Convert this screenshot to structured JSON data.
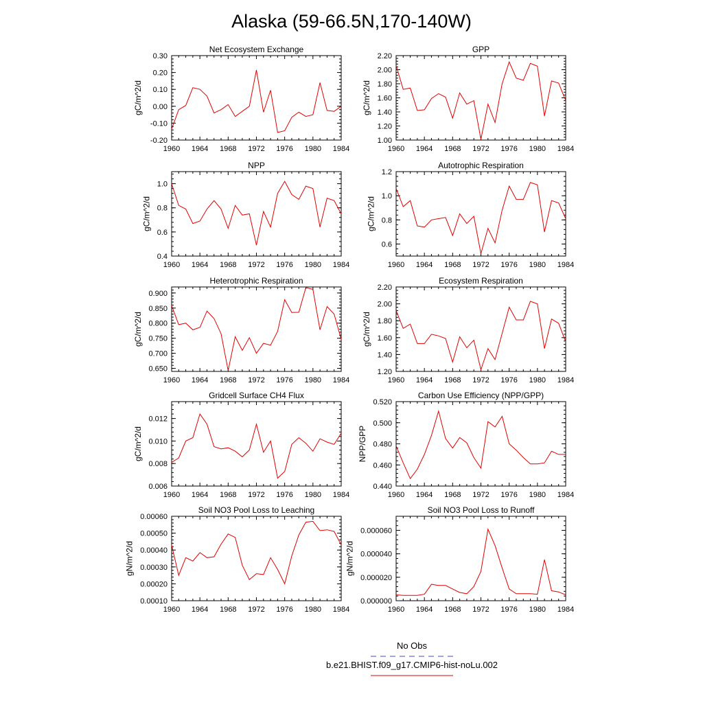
{
  "figure": {
    "title": "Alaska (59-66.5N,170-140W)"
  },
  "legend": {
    "entries": [
      {
        "label": "No Obs",
        "color": "#4444cc",
        "dash": true
      },
      {
        "label": "b.e21.BHIST.f09_g17.CMIP6-hist-noLu.002",
        "color": "#e00000",
        "dash": false
      }
    ]
  },
  "colors": {
    "series": "#e00000"
  },
  "chart_data": [
    {
      "type": "line",
      "title": "Net Ecosystem Exchange",
      "ylabel": "gC/m^2/d",
      "xlim": [
        1960,
        1984
      ],
      "ylim": [
        -0.2,
        0.3
      ],
      "xticks": [
        1960,
        1964,
        1968,
        1972,
        1976,
        1980,
        1984
      ],
      "yticks": [
        "-0.20",
        "-0.10",
        "0.00",
        "0.10",
        "0.20",
        "0.30"
      ],
      "x": [
        1960,
        1961,
        1962,
        1963,
        1964,
        1965,
        1966,
        1967,
        1968,
        1969,
        1970,
        1971,
        1972,
        1973,
        1974,
        1975,
        1976,
        1977,
        1978,
        1979,
        1980,
        1981,
        1982,
        1983,
        1984
      ],
      "series": [
        {
          "name": "b.e21.BHIST.f09_g17.CMIP6-hist-noLu.002",
          "values": [
            -0.135,
            -0.02,
            0.005,
            0.11,
            0.1,
            0.06,
            -0.04,
            -0.02,
            0.01,
            -0.06,
            -0.03,
            0.0,
            0.215,
            -0.035,
            0.095,
            -0.155,
            -0.145,
            -0.065,
            -0.035,
            -0.06,
            -0.05,
            0.14,
            -0.025,
            -0.03,
            0.0
          ]
        }
      ]
    },
    {
      "type": "line",
      "title": "GPP",
      "ylabel": "gC/m^2/d",
      "xlim": [
        1960,
        1984
      ],
      "ylim": [
        1.0,
        2.2
      ],
      "xticks": [
        1960,
        1964,
        1968,
        1972,
        1976,
        1980,
        1984
      ],
      "yticks": [
        "1.00",
        "1.20",
        "1.40",
        "1.60",
        "1.80",
        "2.00",
        "2.20"
      ],
      "x": [
        1960,
        1961,
        1962,
        1963,
        1964,
        1965,
        1966,
        1967,
        1968,
        1969,
        1970,
        1971,
        1972,
        1973,
        1974,
        1975,
        1976,
        1977,
        1978,
        1979,
        1980,
        1981,
        1982,
        1983,
        1984
      ],
      "series": [
        {
          "name": "b.e21.BHIST.f09_g17.CMIP6-hist-noLu.002",
          "values": [
            2.06,
            1.72,
            1.74,
            1.42,
            1.43,
            1.59,
            1.66,
            1.61,
            1.31,
            1.67,
            1.51,
            1.56,
            1.01,
            1.51,
            1.25,
            1.8,
            2.11,
            1.88,
            1.85,
            2.09,
            2.05,
            1.34,
            1.84,
            1.81,
            1.56
          ]
        }
      ]
    },
    {
      "type": "line",
      "title": "NPP",
      "ylabel": "gC/m^2/d",
      "xlim": [
        1960,
        1984
      ],
      "ylim": [
        0.4,
        1.1
      ],
      "xticks": [
        1960,
        1964,
        1968,
        1972,
        1976,
        1980,
        1984
      ],
      "yticks": [
        "0.4",
        "0.6",
        "0.8",
        "1.0"
      ],
      "x": [
        1960,
        1961,
        1962,
        1963,
        1964,
        1965,
        1966,
        1967,
        1968,
        1969,
        1970,
        1971,
        1972,
        1973,
        1974,
        1975,
        1976,
        1977,
        1978,
        1979,
        1980,
        1981,
        1982,
        1983,
        1984
      ],
      "series": [
        {
          "name": "b.e21.BHIST.f09_g17.CMIP6-hist-noLu.002",
          "values": [
            1.0,
            0.82,
            0.79,
            0.67,
            0.69,
            0.79,
            0.86,
            0.79,
            0.63,
            0.82,
            0.74,
            0.75,
            0.49,
            0.77,
            0.64,
            0.92,
            1.02,
            0.91,
            0.87,
            0.98,
            0.96,
            0.64,
            0.88,
            0.86,
            0.75
          ]
        }
      ]
    },
    {
      "type": "line",
      "title": "Autotrophic Respiration",
      "ylabel": "gC/m^2/d",
      "xlim": [
        1960,
        1984
      ],
      "ylim": [
        0.5,
        1.2
      ],
      "xticks": [
        1960,
        1964,
        1968,
        1972,
        1976,
        1980,
        1984
      ],
      "yticks": [
        "0.6",
        "0.8",
        "1.0",
        "1.2"
      ],
      "x": [
        1960,
        1961,
        1962,
        1963,
        1964,
        1965,
        1966,
        1967,
        1968,
        1969,
        1970,
        1971,
        1972,
        1973,
        1974,
        1975,
        1976,
        1977,
        1978,
        1979,
        1980,
        1981,
        1982,
        1983,
        1984
      ],
      "series": [
        {
          "name": "b.e21.BHIST.f09_g17.CMIP6-hist-noLu.002",
          "values": [
            1.06,
            0.91,
            0.96,
            0.75,
            0.74,
            0.8,
            0.81,
            0.82,
            0.67,
            0.85,
            0.77,
            0.83,
            0.52,
            0.73,
            0.61,
            0.88,
            1.08,
            0.97,
            0.97,
            1.11,
            1.09,
            0.7,
            0.96,
            0.94,
            0.81
          ]
        }
      ]
    },
    {
      "type": "line",
      "title": "Heterotrophic Respiration",
      "ylabel": "gC/m^2/d",
      "xlim": [
        1960,
        1984
      ],
      "ylim": [
        0.64,
        0.92
      ],
      "xticks": [
        1960,
        1964,
        1968,
        1972,
        1976,
        1980,
        1984
      ],
      "yticks": [
        "0.650",
        "0.700",
        "0.750",
        "0.800",
        "0.850",
        "0.900"
      ],
      "x": [
        1960,
        1961,
        1962,
        1963,
        1964,
        1965,
        1966,
        1967,
        1968,
        1969,
        1970,
        1971,
        1972,
        1973,
        1974,
        1975,
        1976,
        1977,
        1978,
        1979,
        1980,
        1981,
        1982,
        1983,
        1984
      ],
      "series": [
        {
          "name": "b.e21.BHIST.f09_g17.CMIP6-hist-noLu.002",
          "values": [
            0.858,
            0.795,
            0.8,
            0.778,
            0.786,
            0.84,
            0.815,
            0.765,
            0.643,
            0.755,
            0.71,
            0.752,
            0.7,
            0.733,
            0.727,
            0.773,
            0.878,
            0.835,
            0.836,
            0.918,
            0.912,
            0.778,
            0.855,
            0.83,
            0.746
          ]
        }
      ]
    },
    {
      "type": "line",
      "title": "Ecosystem Respiration",
      "ylabel": "gC/m^2/d",
      "xlim": [
        1960,
        1984
      ],
      "ylim": [
        1.2,
        2.2
      ],
      "xticks": [
        1960,
        1964,
        1968,
        1972,
        1976,
        1980,
        1984
      ],
      "yticks": [
        "1.20",
        "1.40",
        "1.60",
        "1.80",
        "2.00",
        "2.20"
      ],
      "x": [
        1960,
        1961,
        1962,
        1963,
        1964,
        1965,
        1966,
        1967,
        1968,
        1969,
        1970,
        1971,
        1972,
        1973,
        1974,
        1975,
        1976,
        1977,
        1978,
        1979,
        1980,
        1981,
        1982,
        1983,
        1984
      ],
      "series": [
        {
          "name": "b.e21.BHIST.f09_g17.CMIP6-hist-noLu.002",
          "values": [
            1.92,
            1.71,
            1.76,
            1.53,
            1.53,
            1.64,
            1.62,
            1.59,
            1.31,
            1.61,
            1.48,
            1.57,
            1.22,
            1.47,
            1.34,
            1.65,
            1.96,
            1.81,
            1.81,
            2.03,
            2.0,
            1.47,
            1.82,
            1.77,
            1.55
          ]
        }
      ]
    },
    {
      "type": "line",
      "title": "Gridcell Surface CH4 Flux",
      "ylabel": "gC/m^2/d",
      "xlim": [
        1960,
        1984
      ],
      "ylim": [
        0.006,
        0.0135
      ],
      "xticks": [
        1960,
        1964,
        1968,
        1972,
        1976,
        1980,
        1984
      ],
      "yticks": [
        "0.006",
        "0.008",
        "0.010",
        "0.012"
      ],
      "x": [
        1960,
        1961,
        1962,
        1963,
        1964,
        1965,
        1966,
        1967,
        1968,
        1969,
        1970,
        1971,
        1972,
        1973,
        1974,
        1975,
        1976,
        1977,
        1978,
        1979,
        1980,
        1981,
        1982,
        1983,
        1984
      ],
      "series": [
        {
          "name": "b.e21.BHIST.f09_g17.CMIP6-hist-noLu.002",
          "values": [
            0.0081,
            0.0085,
            0.01,
            0.0103,
            0.0124,
            0.0115,
            0.0095,
            0.0093,
            0.0094,
            0.0091,
            0.0086,
            0.0092,
            0.0115,
            0.009,
            0.01,
            0.0067,
            0.0073,
            0.0097,
            0.0103,
            0.0098,
            0.0091,
            0.0102,
            0.0099,
            0.0097,
            0.0107
          ]
        }
      ]
    },
    {
      "type": "line",
      "title": "Carbon Use Efficiency (NPP/GPP)",
      "ylabel": "NPP/GPP",
      "xlim": [
        1960,
        1984
      ],
      "ylim": [
        0.44,
        0.52
      ],
      "xticks": [
        1960,
        1964,
        1968,
        1972,
        1976,
        1980,
        1984
      ],
      "yticks": [
        "0.440",
        "0.460",
        "0.480",
        "0.500",
        "0.520"
      ],
      "x": [
        1960,
        1961,
        1962,
        1963,
        1964,
        1965,
        1966,
        1967,
        1968,
        1969,
        1970,
        1971,
        1972,
        1973,
        1974,
        1975,
        1976,
        1977,
        1978,
        1979,
        1980,
        1981,
        1982,
        1983,
        1984
      ],
      "series": [
        {
          "name": "b.e21.BHIST.f09_g17.CMIP6-hist-noLu.002",
          "values": [
            0.478,
            0.462,
            0.447,
            0.456,
            0.47,
            0.488,
            0.511,
            0.485,
            0.476,
            0.486,
            0.481,
            0.467,
            0.457,
            0.501,
            0.496,
            0.506,
            0.48,
            0.474,
            0.467,
            0.461,
            0.461,
            0.462,
            0.473,
            0.47,
            0.47
          ]
        }
      ]
    },
    {
      "type": "line",
      "title": "Soil NO3 Pool Loss to Leaching",
      "ylabel": "gN/m^2/d",
      "xlim": [
        1960,
        1984
      ],
      "ylim": [
        0.0001,
        0.0006
      ],
      "xticks": [
        1960,
        1964,
        1968,
        1972,
        1976,
        1980,
        1984
      ],
      "yticks": [
        "0.00010",
        "0.00020",
        "0.00030",
        "0.00040",
        "0.00050",
        "0.00060"
      ],
      "x": [
        1960,
        1961,
        1962,
        1963,
        1964,
        1965,
        1966,
        1967,
        1968,
        1969,
        1970,
        1971,
        1972,
        1973,
        1974,
        1975,
        1976,
        1977,
        1978,
        1979,
        1980,
        1981,
        1982,
        1983,
        1984
      ],
      "series": [
        {
          "name": "b.e21.BHIST.f09_g17.CMIP6-hist-noLu.002",
          "values": [
            0.00043,
            0.00025,
            0.000355,
            0.000335,
            0.000385,
            0.000355,
            0.00036,
            0.000435,
            0.000495,
            0.000475,
            0.00031,
            0.000225,
            0.00026,
            0.000255,
            0.000355,
            0.000285,
            0.0002,
            0.000365,
            0.00049,
            0.000565,
            0.00057,
            0.000515,
            0.00052,
            0.00051,
            0.00043
          ]
        }
      ]
    },
    {
      "type": "line",
      "title": "Soil NO3 Pool Loss to Runoff",
      "ylabel": "gN/m^2/d",
      "xlim": [
        1960,
        1984
      ],
      "ylim": [
        0.0,
        7.2e-05
      ],
      "xticks": [
        1960,
        1964,
        1968,
        1972,
        1976,
        1980,
        1984
      ],
      "yticks": [
        "0.000000",
        "0.000020",
        "0.000040",
        "0.000060"
      ],
      "x": [
        1960,
        1961,
        1962,
        1963,
        1964,
        1965,
        1966,
        1967,
        1968,
        1969,
        1970,
        1971,
        1972,
        1973,
        1974,
        1975,
        1976,
        1977,
        1978,
        1979,
        1980,
        1981,
        1982,
        1983,
        1984
      ],
      "series": [
        {
          "name": "b.e21.BHIST.f09_g17.CMIP6-hist-noLu.002",
          "values": [
            5e-06,
            4.5e-06,
            4.5e-06,
            4.5e-06,
            5.5e-06,
            1.4e-05,
            1.3e-05,
            1.3e-05,
            1e-05,
            7e-06,
            6e-06,
            1.2e-05,
            2.5e-05,
            6.1e-05,
            4.7e-05,
            2.8e-05,
            1e-05,
            6e-06,
            6e-06,
            6e-06,
            5.5e-06,
            3.5e-05,
            8.5e-06,
            7.5e-06,
            5e-06
          ]
        }
      ]
    }
  ]
}
